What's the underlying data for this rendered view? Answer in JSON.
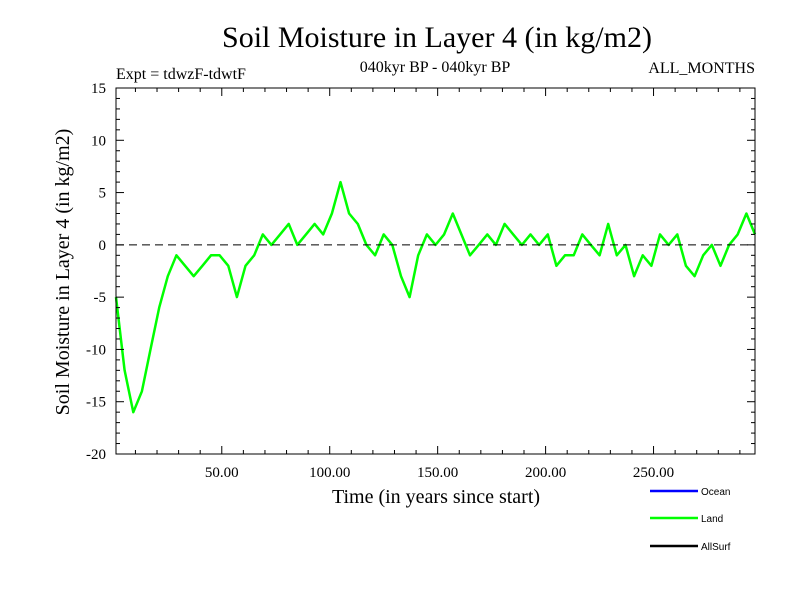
{
  "chart_data": {
    "type": "line",
    "title": "Soil Moisture in Layer 4 (in kg/m2)",
    "subtitle_left": "Expt = tdwzF-tdwtF",
    "subtitle_center": "040kyr BP - 040kyr BP",
    "subtitle_right": "ALL_MONTHS",
    "xlabel": "Time (in years since start)",
    "ylabel": "Soil Moisture in Layer 4 (in kg/m2)",
    "xlim": [
      1,
      297
    ],
    "ylim": [
      -20,
      15
    ],
    "x_ticks": [
      {
        "value": 50,
        "label": "50.00"
      },
      {
        "value": 100,
        "label": "100.00"
      },
      {
        "value": 150,
        "label": "150.00"
      },
      {
        "value": 200,
        "label": "200.00"
      },
      {
        "value": 250,
        "label": "250.00"
      }
    ],
    "y_ticks": [
      {
        "value": 15,
        "label": "15"
      },
      {
        "value": 10,
        "label": "10"
      },
      {
        "value": 5,
        "label": "5"
      },
      {
        "value": 0,
        "label": "0"
      },
      {
        "value": -5,
        "label": "-5"
      },
      {
        "value": -10,
        "label": "-10"
      },
      {
        "value": -15,
        "label": "-15"
      },
      {
        "value": -20,
        "label": "-20"
      }
    ],
    "zero_line": 0,
    "legend": {
      "position": "bottom-right",
      "entries": [
        {
          "name": "Ocean",
          "color": "#0000ff"
        },
        {
          "name": "Land",
          "color": "#00ff00"
        },
        {
          "name": "AllSurf",
          "color": "#000000"
        }
      ]
    },
    "series": [
      {
        "name": "Land",
        "color": "#00ff00",
        "x": [
          1,
          5,
          9,
          13,
          17,
          21,
          25,
          29,
          33,
          37,
          41,
          45,
          49,
          53,
          57,
          61,
          65,
          69,
          73,
          77,
          81,
          85,
          89,
          93,
          97,
          101,
          105,
          109,
          113,
          117,
          121,
          125,
          129,
          133,
          137,
          141,
          145,
          149,
          153,
          157,
          161,
          165,
          169,
          173,
          177,
          181,
          185,
          189,
          193,
          197,
          201,
          205,
          209,
          213,
          217,
          221,
          225,
          229,
          233,
          237,
          241,
          245,
          249,
          253,
          257,
          261,
          265,
          269,
          273,
          277,
          281,
          285,
          289,
          293,
          297
        ],
        "values": [
          -5,
          -12,
          -16,
          -14,
          -10,
          -6,
          -3,
          -1,
          -2,
          -3,
          -2,
          -1,
          -1,
          -2,
          -5,
          -2,
          -1,
          1,
          0,
          1,
          2,
          0,
          1,
          2,
          1,
          3,
          6,
          3,
          2,
          0,
          -1,
          1,
          0,
          -3,
          -5,
          -1,
          1,
          0,
          1,
          3,
          1,
          -1,
          0,
          1,
          0,
          2,
          1,
          0,
          1,
          0,
          1,
          -2,
          -1,
          -1,
          1,
          0,
          -1,
          2,
          -1,
          0,
          -3,
          -1,
          -2,
          1,
          0,
          1,
          -2,
          -3,
          -1,
          0,
          -2,
          0,
          1,
          3,
          1
        ]
      }
    ]
  }
}
